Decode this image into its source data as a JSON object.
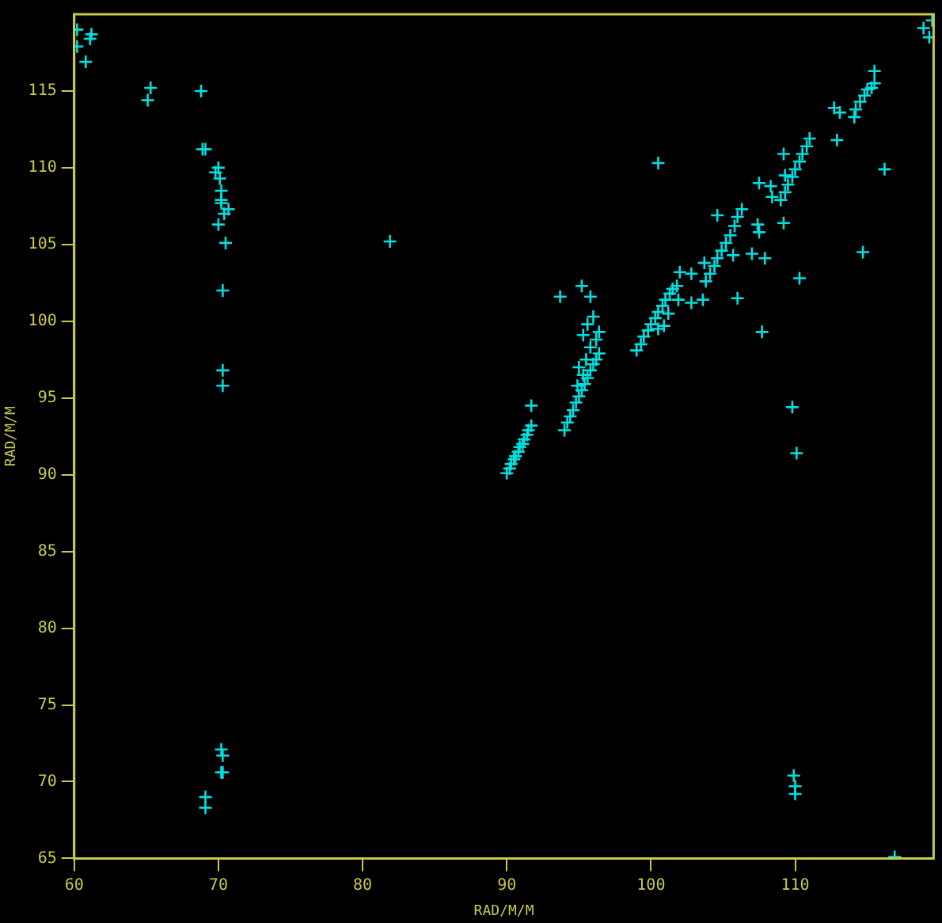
{
  "chart_data": {
    "type": "scatter",
    "xlabel": "RAD/M/M",
    "ylabel": "RAD/M/M",
    "xlim": [
      60,
      119.6
    ],
    "ylim": [
      65,
      120
    ],
    "xticks": [
      60,
      70,
      80,
      90,
      100,
      110
    ],
    "yticks": [
      65,
      70,
      75,
      80,
      85,
      90,
      95,
      100,
      105,
      110,
      115
    ],
    "grid": false,
    "marker": "cross",
    "series": [
      {
        "color": "#00e0e0",
        "x": [
          60.2,
          60.2,
          61.1,
          61.2,
          60.8,
          65.3,
          65.1,
          68.8,
          68.9,
          69.1,
          70.0,
          69.8,
          70.1,
          70.2,
          70.2,
          70.2,
          70.4,
          70.7,
          70.0,
          70.5,
          70.3,
          70.3,
          70.3,
          81.9,
          70.2,
          70.3,
          70.2,
          70.3,
          69.1,
          69.1,
          109.9,
          110.0,
          110.0,
          110.1,
          116.9,
          100.5,
          118.9,
          119.3,
          119.5,
          115.5,
          115.5,
          116.2,
          114.7,
          110.3,
          109.8,
          107.7,
          93.7,
          95.2,
          95.8,
          91.7,
          112.7,
          113.1,
          114.1,
          114.2,
          114.5,
          114.8,
          115.0,
          115.3,
          112.9,
          90.0,
          90.2,
          90.3,
          90.5,
          90.6,
          90.8,
          90.9,
          91.1,
          91.2,
          91.4,
          91.5,
          91.7,
          94.0,
          94.2,
          94.4,
          94.6,
          94.8,
          95.0,
          95.2,
          95.4,
          95.6,
          95.8,
          96.0,
          96.2,
          96.4,
          94.9,
          95.3,
          95.0,
          95.5,
          95.8,
          96.2,
          95.3,
          95.6,
          96.0,
          96.4,
          99.0,
          99.3,
          99.5,
          99.8,
          100.0,
          100.3,
          100.5,
          100.8,
          101.0,
          101.3,
          101.5,
          101.8,
          100.5,
          100.9,
          101.2,
          101.9,
          102.8,
          103.6,
          106.0,
          102.0,
          102.8,
          103.7,
          105.7,
          107.0,
          107.9,
          104.6,
          103.8,
          104.1,
          104.4,
          104.6,
          104.9,
          105.2,
          105.5,
          105.8,
          106.0,
          106.3,
          109.0,
          109.3,
          109.5,
          109.8,
          110.0,
          110.3,
          110.5,
          110.8,
          111.0,
          108.4,
          108.3,
          109.3,
          109.2,
          109.2,
          107.4,
          107.5,
          107.5
        ],
        "values": [
          119.0,
          117.9,
          118.4,
          118.7,
          116.9,
          115.2,
          114.4,
          115.0,
          111.2,
          111.2,
          110.0,
          109.7,
          109.3,
          108.5,
          107.9,
          107.7,
          107.0,
          107.3,
          106.3,
          105.1,
          102.0,
          96.8,
          95.8,
          105.2,
          72.1,
          71.7,
          70.6,
          70.6,
          69.0,
          68.3,
          70.4,
          69.7,
          69.2,
          91.4,
          65.1,
          110.3,
          119.1,
          118.5,
          119.6,
          116.3,
          115.5,
          109.9,
          104.5,
          102.8,
          94.4,
          99.3,
          101.6,
          102.3,
          101.6,
          94.5,
          113.9,
          113.6,
          113.3,
          113.8,
          114.3,
          114.7,
          115.1,
          115.2,
          111.8,
          90.1,
          90.4,
          90.7,
          91.0,
          91.2,
          91.5,
          91.8,
          92.0,
          92.3,
          92.6,
          92.9,
          93.2,
          92.9,
          93.4,
          93.8,
          94.2,
          94.7,
          95.1,
          95.5,
          95.9,
          96.3,
          96.8,
          97.2,
          97.5,
          97.9,
          95.8,
          96.5,
          97.0,
          97.5,
          98.3,
          98.8,
          99.1,
          99.8,
          100.3,
          99.3,
          98.1,
          98.5,
          99.0,
          99.4,
          99.8,
          100.2,
          100.6,
          101.0,
          101.4,
          101.8,
          102.1,
          102.3,
          99.5,
          99.7,
          100.5,
          101.4,
          101.2,
          101.4,
          101.5,
          103.2,
          103.1,
          103.8,
          104.3,
          104.4,
          104.1,
          106.9,
          102.6,
          103.1,
          103.6,
          104.1,
          104.6,
          105.1,
          105.6,
          106.2,
          106.8,
          107.3,
          107.9,
          108.4,
          108.9,
          109.4,
          109.9,
          110.4,
          110.9,
          111.4,
          111.9,
          108.1,
          108.8,
          109.5,
          110.9,
          106.4,
          106.3,
          105.8,
          109.0
        ]
      }
    ]
  }
}
